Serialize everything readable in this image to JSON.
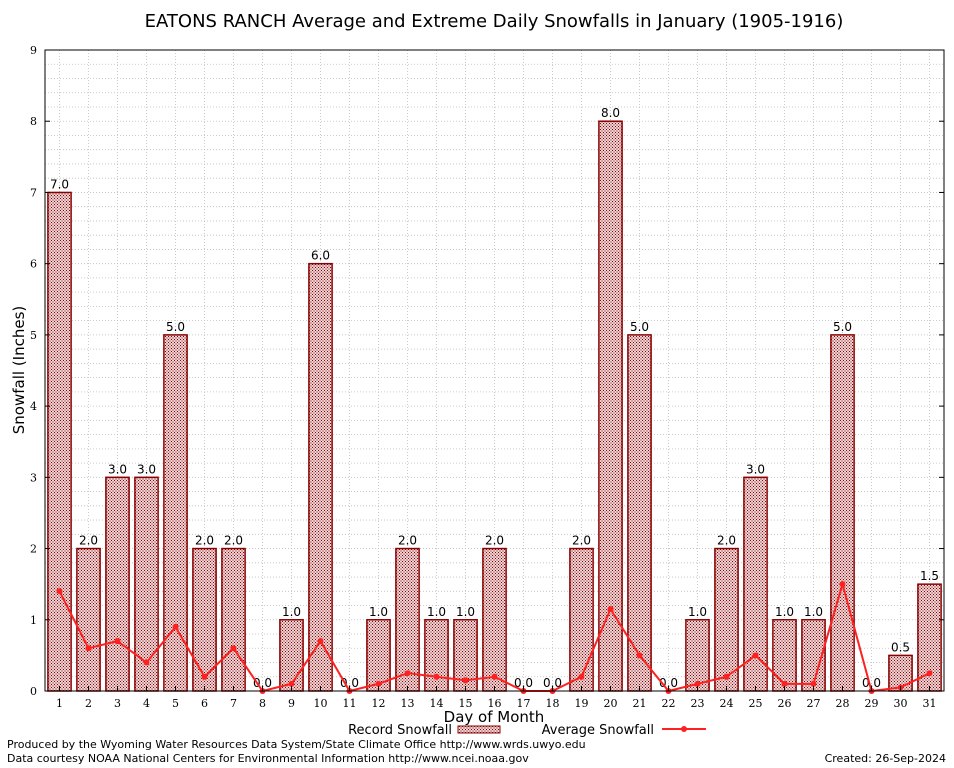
{
  "chart_data": {
    "type": "bar",
    "title": "EATONS RANCH Average and Extreme Daily Snowfalls in January (1905-1916)",
    "xlabel": "Day of Month",
    "ylabel": "Snowfall (Inches)",
    "ylim": [
      0,
      9
    ],
    "yticks": [
      "0",
      "1",
      "2",
      "3",
      "4",
      "5",
      "6",
      "7",
      "8",
      "9"
    ],
    "grid": true,
    "legend_position": "bottom",
    "categories": [
      "1",
      "2",
      "3",
      "4",
      "5",
      "6",
      "7",
      "8",
      "9",
      "10",
      "11",
      "12",
      "13",
      "14",
      "15",
      "16",
      "17",
      "18",
      "19",
      "20",
      "21",
      "22",
      "23",
      "24",
      "25",
      "26",
      "27",
      "28",
      "29",
      "30",
      "31"
    ],
    "series": [
      {
        "name": "Record Snowfall",
        "kind": "bar",
        "color": "#8b0000",
        "values": [
          7.0,
          2.0,
          3.0,
          3.0,
          5.0,
          2.0,
          2.0,
          0.0,
          1.0,
          6.0,
          0.0,
          1.0,
          2.0,
          1.0,
          1.0,
          2.0,
          0.0,
          0.0,
          2.0,
          8.0,
          5.0,
          0.0,
          1.0,
          2.0,
          3.0,
          1.0,
          1.0,
          5.0,
          0.0,
          0.5,
          1.5
        ],
        "labels": [
          "7.0",
          "2.0",
          "3.0",
          "3.0",
          "5.0",
          "2.0",
          "2.0",
          "0.0",
          "1.0",
          "6.0",
          "0.0",
          "1.0",
          "2.0",
          "1.0",
          "1.0",
          "2.0",
          "0.0",
          "0.0",
          "2.0",
          "8.0",
          "5.0",
          "0.0",
          "1.0",
          "2.0",
          "3.0",
          "1.0",
          "1.0",
          "5.0",
          "0.0",
          "0.5",
          "1.5"
        ]
      },
      {
        "name": "Average Snowfall",
        "kind": "line",
        "color": "#ff2020",
        "values": [
          1.4,
          0.6,
          0.7,
          0.4,
          0.9,
          0.2,
          0.6,
          0.0,
          0.1,
          0.7,
          0.0,
          0.1,
          0.25,
          0.2,
          0.15,
          0.2,
          0.0,
          0.0,
          0.2,
          1.15,
          0.5,
          0.0,
          0.1,
          0.2,
          0.5,
          0.1,
          0.1,
          1.5,
          0.0,
          0.05,
          0.25
        ]
      }
    ]
  },
  "footer": {
    "producer": "Produced by the Wyoming Water Resources Data System/State Climate Office http://www.wrds.uwyo.edu",
    "source": "Data courtesy NOAA National Centers for Environmental Information http://www.ncei.noaa.gov",
    "created": "Created:  26-Sep-2024"
  }
}
